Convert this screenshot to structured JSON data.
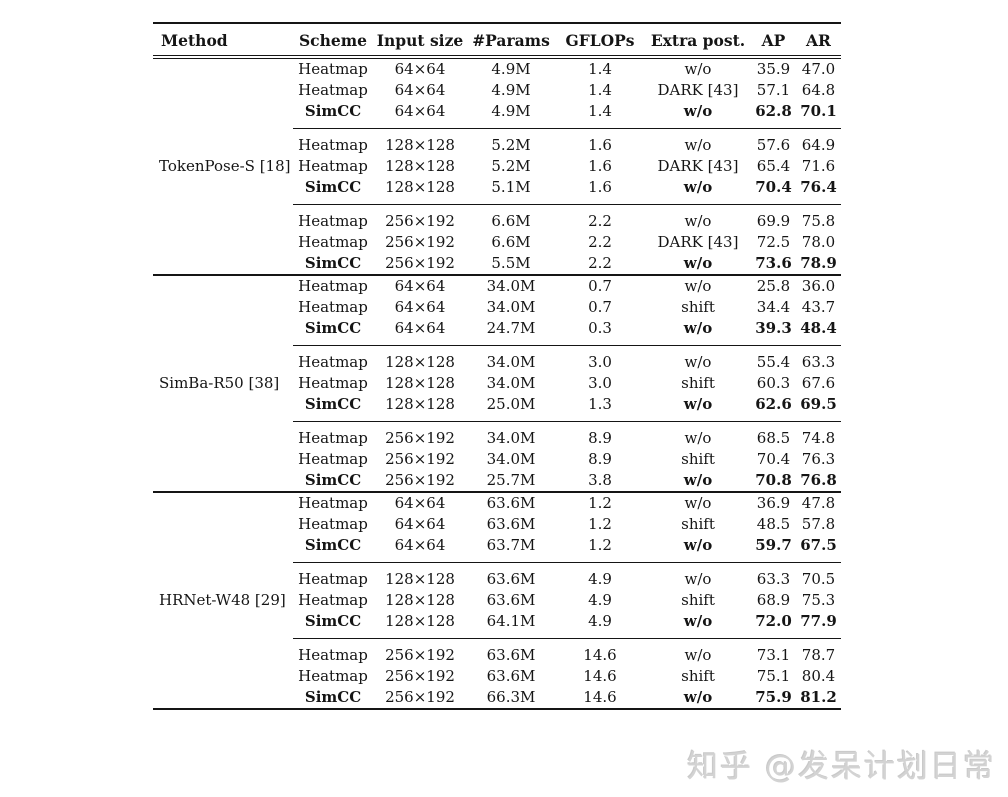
{
  "page": {
    "watermark": "知乎 @发呆计划日常"
  },
  "table": {
    "headers": [
      "Method",
      "Scheme",
      "Input size",
      "#Params",
      "GFLOPs",
      "Extra post.",
      "AP",
      "AR"
    ],
    "groups": [
      {
        "method": "TokenPose-S [18]",
        "rows": [
          {
            "scheme": "Heatmap",
            "input_size": "64×64",
            "params": "4.9M",
            "gflops": "1.4",
            "extra_post": "w/o",
            "ap": "35.9",
            "ar": "47.0",
            "highlight": false
          },
          {
            "scheme": "Heatmap",
            "input_size": "64×64",
            "params": "4.9M",
            "gflops": "1.4",
            "extra_post": "DARK [43]",
            "ap": "57.1",
            "ar": "64.8",
            "highlight": false
          },
          {
            "scheme": "SimCC",
            "input_size": "64×64",
            "params": "4.9M",
            "gflops": "1.4",
            "extra_post": "w/o",
            "ap": "62.8",
            "ar": "70.1",
            "highlight": true
          },
          {
            "scheme": "Heatmap",
            "input_size": "128×128",
            "params": "5.2M",
            "gflops": "1.6",
            "extra_post": "w/o",
            "ap": "57.6",
            "ar": "64.9",
            "highlight": false
          },
          {
            "scheme": "Heatmap",
            "input_size": "128×128",
            "params": "5.2M",
            "gflops": "1.6",
            "extra_post": "DARK [43]",
            "ap": "65.4",
            "ar": "71.6",
            "highlight": false
          },
          {
            "scheme": "SimCC",
            "input_size": "128×128",
            "params": "5.1M",
            "gflops": "1.6",
            "extra_post": "w/o",
            "ap": "70.4",
            "ar": "76.4",
            "highlight": true
          },
          {
            "scheme": "Heatmap",
            "input_size": "256×192",
            "params": "6.6M",
            "gflops": "2.2",
            "extra_post": "w/o",
            "ap": "69.9",
            "ar": "75.8",
            "highlight": false
          },
          {
            "scheme": "Heatmap",
            "input_size": "256×192",
            "params": "6.6M",
            "gflops": "2.2",
            "extra_post": "DARK [43]",
            "ap": "72.5",
            "ar": "78.0",
            "highlight": false
          },
          {
            "scheme": "SimCC",
            "input_size": "256×192",
            "params": "5.5M",
            "gflops": "2.2",
            "extra_post": "w/o",
            "ap": "73.6",
            "ar": "78.9",
            "highlight": true
          }
        ]
      },
      {
        "method": "SimBa-R50 [38]",
        "rows": [
          {
            "scheme": "Heatmap",
            "input_size": "64×64",
            "params": "34.0M",
            "gflops": "0.7",
            "extra_post": "w/o",
            "ap": "25.8",
            "ar": "36.0",
            "highlight": false
          },
          {
            "scheme": "Heatmap",
            "input_size": "64×64",
            "params": "34.0M",
            "gflops": "0.7",
            "extra_post": "shift",
            "ap": "34.4",
            "ar": "43.7",
            "highlight": false
          },
          {
            "scheme": "SimCC",
            "input_size": "64×64",
            "params": "24.7M",
            "gflops": "0.3",
            "extra_post": "w/o",
            "ap": "39.3",
            "ar": "48.4",
            "highlight": true
          },
          {
            "scheme": "Heatmap",
            "input_size": "128×128",
            "params": "34.0M",
            "gflops": "3.0",
            "extra_post": "w/o",
            "ap": "55.4",
            "ar": "63.3",
            "highlight": false
          },
          {
            "scheme": "Heatmap",
            "input_size": "128×128",
            "params": "34.0M",
            "gflops": "3.0",
            "extra_post": "shift",
            "ap": "60.3",
            "ar": "67.6",
            "highlight": false
          },
          {
            "scheme": "SimCC",
            "input_size": "128×128",
            "params": "25.0M",
            "gflops": "1.3",
            "extra_post": "w/o",
            "ap": "62.6",
            "ar": "69.5",
            "highlight": true
          },
          {
            "scheme": "Heatmap",
            "input_size": "256×192",
            "params": "34.0M",
            "gflops": "8.9",
            "extra_post": "w/o",
            "ap": "68.5",
            "ar": "74.8",
            "highlight": false
          },
          {
            "scheme": "Heatmap",
            "input_size": "256×192",
            "params": "34.0M",
            "gflops": "8.9",
            "extra_post": "shift",
            "ap": "70.4",
            "ar": "76.3",
            "highlight": false
          },
          {
            "scheme": "SimCC",
            "input_size": "256×192",
            "params": "25.7M",
            "gflops": "3.8",
            "extra_post": "w/o",
            "ap": "70.8",
            "ar": "76.8",
            "highlight": true
          }
        ]
      },
      {
        "method": "HRNet-W48 [29]",
        "rows": [
          {
            "scheme": "Heatmap",
            "input_size": "64×64",
            "params": "63.6M",
            "gflops": "1.2",
            "extra_post": "w/o",
            "ap": "36.9",
            "ar": "47.8",
            "highlight": false
          },
          {
            "scheme": "Heatmap",
            "input_size": "64×64",
            "params": "63.6M",
            "gflops": "1.2",
            "extra_post": "shift",
            "ap": "48.5",
            "ar": "57.8",
            "highlight": false
          },
          {
            "scheme": "SimCC",
            "input_size": "64×64",
            "params": "63.7M",
            "gflops": "1.2",
            "extra_post": "w/o",
            "ap": "59.7",
            "ar": "67.5",
            "highlight": true
          },
          {
            "scheme": "Heatmap",
            "input_size": "128×128",
            "params": "63.6M",
            "gflops": "4.9",
            "extra_post": "w/o",
            "ap": "63.3",
            "ar": "70.5",
            "highlight": false
          },
          {
            "scheme": "Heatmap",
            "input_size": "128×128",
            "params": "63.6M",
            "gflops": "4.9",
            "extra_post": "shift",
            "ap": "68.9",
            "ar": "75.3",
            "highlight": false
          },
          {
            "scheme": "SimCC",
            "input_size": "128×128",
            "params": "64.1M",
            "gflops": "4.9",
            "extra_post": "w/o",
            "ap": "72.0",
            "ar": "77.9",
            "highlight": true
          },
          {
            "scheme": "Heatmap",
            "input_size": "256×192",
            "params": "63.6M",
            "gflops": "14.6",
            "extra_post": "w/o",
            "ap": "73.1",
            "ar": "78.7",
            "highlight": false
          },
          {
            "scheme": "Heatmap",
            "input_size": "256×192",
            "params": "63.6M",
            "gflops": "14.6",
            "extra_post": "shift",
            "ap": "75.1",
            "ar": "80.4",
            "highlight": false
          },
          {
            "scheme": "SimCC",
            "input_size": "256×192",
            "params": "66.3M",
            "gflops": "14.6",
            "extra_post": "w/o",
            "ap": "75.9",
            "ar": "81.2",
            "highlight": true
          }
        ]
      }
    ]
  }
}
